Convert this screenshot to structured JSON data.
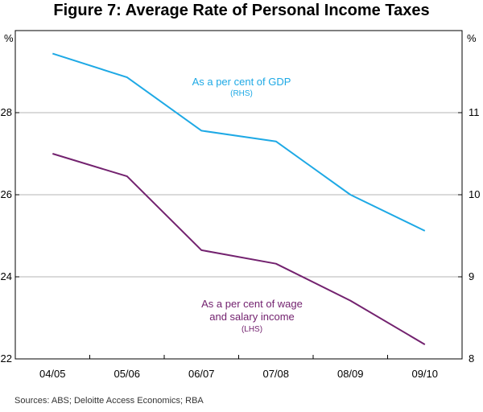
{
  "chart_data": {
    "type": "line",
    "title": "Figure 7: Average Rate of Personal Income Taxes",
    "categories": [
      "04/05",
      "05/06",
      "06/07",
      "07/08",
      "08/09",
      "09/10"
    ],
    "left_axis": {
      "unit": "%",
      "range": [
        22,
        30
      ],
      "ticks": [
        22,
        24,
        26,
        28
      ]
    },
    "right_axis": {
      "unit": "%",
      "range": [
        8,
        12
      ],
      "ticks": [
        8,
        9,
        10,
        11
      ]
    },
    "grid": true,
    "series": [
      {
        "name": "As a per cent of GDP",
        "axis_label": "(RHS)",
        "axis": "right",
        "color": "#1EA9E5",
        "values": [
          11.72,
          11.43,
          10.78,
          10.65,
          10.0,
          9.56
        ]
      },
      {
        "name_lines": [
          "As a per cent of wage",
          "and salary income"
        ],
        "axis_label": "(LHS)",
        "axis": "left",
        "color": "#73226F",
        "values": [
          27.0,
          26.45,
          24.65,
          24.32,
          23.42,
          22.35
        ]
      }
    ],
    "source": "Sources:  ABS; Deloitte Access Economics; RBA"
  }
}
